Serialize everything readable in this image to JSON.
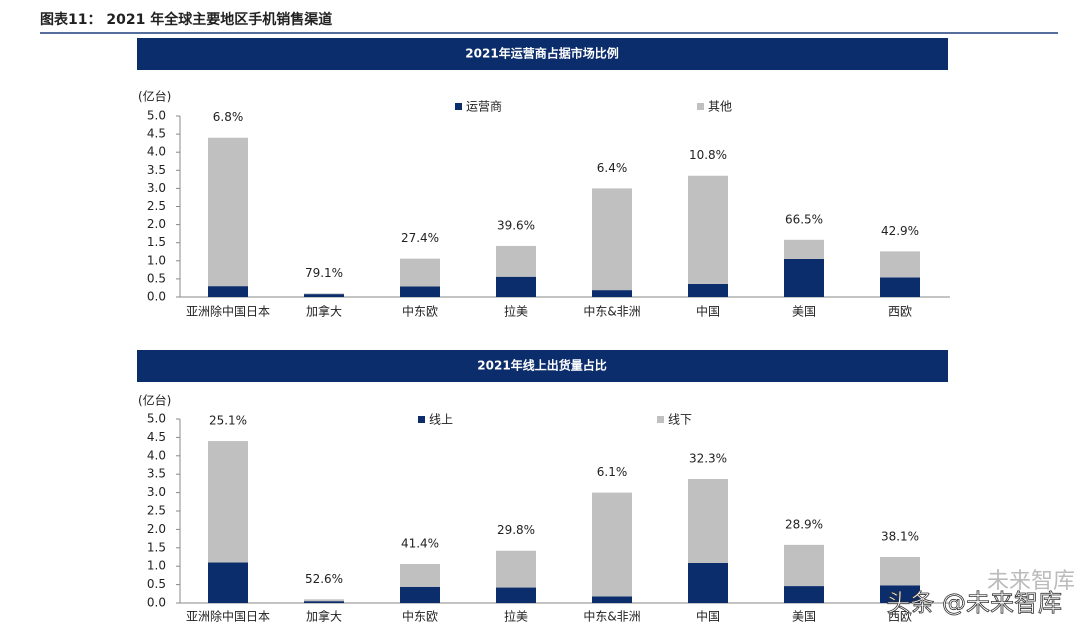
{
  "title": "图表11： 2021 年全球主要地区手机销售渠道",
  "chart_data": [
    {
      "type": "bar",
      "stacked": true,
      "title": "2021年运营商占据市场比例",
      "y_label": "(亿台)",
      "categories": [
        "亚洲除中国日本",
        "加拿大",
        "中东欧",
        "拉美",
        "中东&非洲",
        "中国",
        "美国",
        "西欧"
      ],
      "series": [
        {
          "name": "运营商",
          "color": "#0b2d6b",
          "values": [
            0.3,
            0.08,
            0.29,
            0.56,
            0.19,
            0.36,
            1.05,
            0.54
          ]
        },
        {
          "name": "其他",
          "color": "#c0c0c0",
          "values": [
            4.1,
            0.02,
            0.77,
            0.85,
            2.81,
            2.99,
            0.53,
            0.72
          ]
        }
      ],
      "share_labels": [
        "6.8%",
        "79.1%",
        "27.4%",
        "39.6%",
        "6.4%",
        "10.8%",
        "66.5%",
        "42.9%"
      ],
      "ylim": [
        0,
        5
      ],
      "yticks": [
        {
          "value": 0,
          "label": "0.0"
        },
        {
          "value": 0.5,
          "label": "0.5"
        },
        {
          "value": 1,
          "label": "1.0"
        },
        {
          "value": 1.5,
          "label": "1.5"
        },
        {
          "value": 2,
          "label": "2.0"
        },
        {
          "value": 2.5,
          "label": "2.5"
        },
        {
          "value": 3,
          "label": "3.0"
        },
        {
          "value": 3.5,
          "label": "3.5"
        },
        {
          "value": 4,
          "label": "4.0"
        },
        {
          "value": 4.5,
          "label": "4.5"
        },
        {
          "value": 5,
          "label": "5.0"
        }
      ]
    },
    {
      "type": "bar",
      "stacked": true,
      "title": "2021年线上出货量占比",
      "y_label": "(亿台)",
      "categories": [
        "亚洲除中国日本",
        "加拿大",
        "中东欧",
        "拉美",
        "中东&非洲",
        "中国",
        "美国",
        "西欧"
      ],
      "series": [
        {
          "name": "线上",
          "color": "#0b2d6b",
          "values": [
            1.1,
            0.05,
            0.44,
            0.42,
            0.18,
            1.09,
            0.46,
            0.48
          ]
        },
        {
          "name": "线下",
          "color": "#c0c0c0",
          "values": [
            3.3,
            0.05,
            0.62,
            1.0,
            2.82,
            2.28,
            1.12,
            0.77
          ]
        }
      ],
      "share_labels": [
        "25.1%",
        "52.6%",
        "41.4%",
        "29.8%",
        "6.1%",
        "32.3%",
        "28.9%",
        "38.1%"
      ],
      "ylim": [
        0,
        5
      ],
      "yticks": [
        {
          "value": 0,
          "label": "0.0"
        },
        {
          "value": 0.5,
          "label": "0.5"
        },
        {
          "value": 1,
          "label": "1.0"
        },
        {
          "value": 1.5,
          "label": "1.5"
        },
        {
          "value": 2,
          "label": "2.0"
        },
        {
          "value": 2.5,
          "label": "2.5"
        },
        {
          "value": 3,
          "label": "3.0"
        },
        {
          "value": 3.5,
          "label": "3.5"
        },
        {
          "value": 4,
          "label": "4.0"
        },
        {
          "value": 4.5,
          "label": "4.5"
        },
        {
          "value": 5,
          "label": "5.0"
        }
      ]
    }
  ],
  "watermark": [
    "未来智库",
    "头条 @未来智库"
  ]
}
